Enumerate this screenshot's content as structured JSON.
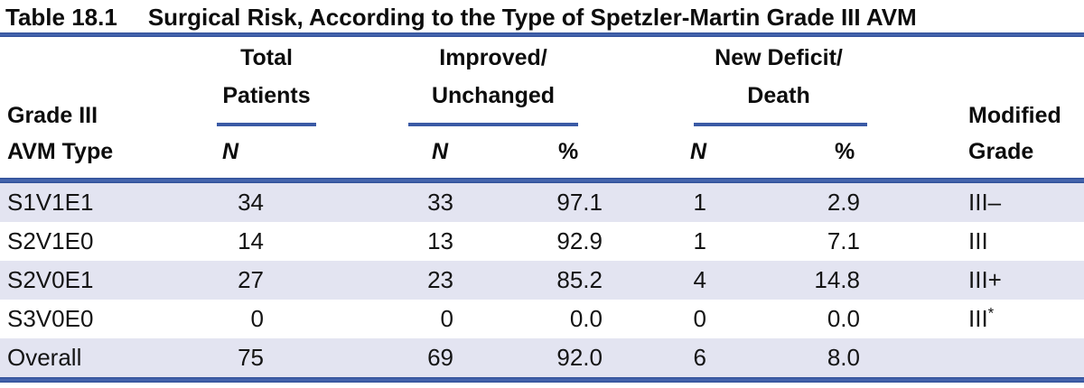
{
  "title": {
    "label": "Table 18.1",
    "text": "Surgical Risk, According to the Type of Spetzler-Martin Grade III AVM"
  },
  "header": {
    "col1_line1": "Grade III",
    "col1_line2": "AVM Type",
    "group_total_line1": "Total",
    "group_total_line2": "Patients",
    "group_improved_line1": "Improved/",
    "group_improved_line2": "Unchanged",
    "group_deficit_line1": "New Deficit/",
    "group_deficit_line2": "Death",
    "sub_n_total": "N",
    "sub_n_improved": "N",
    "sub_pct_improved": "%",
    "sub_n_deficit": "N",
    "sub_pct_deficit": "%",
    "col_modified_line1": "Modified",
    "col_modified_line2": "Grade"
  },
  "rows": [
    {
      "avm_type": "S1V1E1",
      "total_n": "34",
      "improved_n": "33",
      "improved_pct": "97.1",
      "deficit_n": "1",
      "deficit_pct": "2.9",
      "modified_grade": "III–",
      "modified_sup": ""
    },
    {
      "avm_type": "S2V1E0",
      "total_n": "14",
      "improved_n": "13",
      "improved_pct": "92.9",
      "deficit_n": "1",
      "deficit_pct": "7.1",
      "modified_grade": "III",
      "modified_sup": ""
    },
    {
      "avm_type": "S2V0E1",
      "total_n": "27",
      "improved_n": "23",
      "improved_pct": "85.2",
      "deficit_n": "4",
      "deficit_pct": "14.8",
      "modified_grade": "III+",
      "modified_sup": ""
    },
    {
      "avm_type": "S3V0E0",
      "total_n": "0",
      "improved_n": "0",
      "improved_pct": "0.0",
      "deficit_n": "0",
      "deficit_pct": "0.0",
      "modified_grade": "III",
      "modified_sup": "*"
    },
    {
      "avm_type": "Overall",
      "total_n": "75",
      "improved_n": "69",
      "improved_pct": "92.0",
      "deficit_n": "6",
      "deficit_pct": "8.0",
      "modified_grade": "",
      "modified_sup": ""
    }
  ],
  "colors": {
    "rule_blue": "#3a5aa5",
    "row_shade": "#e3e4f1",
    "text": "#111111"
  }
}
